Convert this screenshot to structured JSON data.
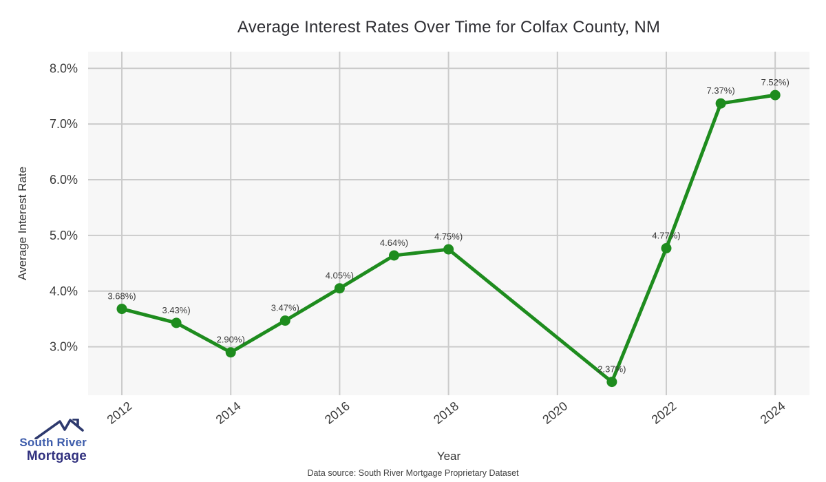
{
  "chart_data": {
    "type": "line",
    "title": "Average Interest Rates Over Time for Colfax County, NM",
    "xlabel": "Year",
    "ylabel": "Average Interest Rate",
    "x": [
      2012,
      2013,
      2014,
      2015,
      2016,
      2017,
      2018,
      2021,
      2022,
      2023,
      2024
    ],
    "values": [
      3.68,
      3.43,
      2.9,
      3.47,
      4.05,
      4.64,
      4.75,
      2.37,
      4.77,
      7.37,
      7.52
    ],
    "point_labels": [
      "3.68%)",
      "3.43%)",
      "2.90%)",
      "3.47%)",
      "4.05%)",
      "4.64%)",
      "4.75%)",
      "2.37%)",
      "4.77%)",
      "7.37%)",
      "7.52%)"
    ],
    "xticks": {
      "values": [
        2012,
        2014,
        2016,
        2018,
        2020,
        2022,
        2024
      ],
      "labels": [
        "2012",
        "2014",
        "2016",
        "2018",
        "2020",
        "2022",
        "2024"
      ]
    },
    "yticks": {
      "values": [
        3,
        4,
        5,
        6,
        7,
        8
      ],
      "labels": [
        "3.0%",
        "4.0%",
        "5.0%",
        "6.0%",
        "7.0%",
        "8.0%"
      ]
    },
    "xlim": [
      2011.38,
      2024.63
    ],
    "ylim": [
      2.13,
      8.3
    ],
    "grid": true,
    "legend": "none",
    "line_color": "#1e8c1e",
    "marker_color": "#1e8c1e",
    "plot_bg": "#f7f7f7",
    "grid_color": "#cbcbcb",
    "tick_color": "#3b3b3b",
    "label_color": "#333333",
    "annotation_color": "#3b3b3b"
  },
  "footer": {
    "text": "Data source: South River Mortgage Proprietary Dataset"
  },
  "logo": {
    "line1": "South River",
    "line2": "Mortgage",
    "color1": "#3d5cab",
    "color2": "#31317f",
    "roof_color": "#2e3a6e"
  }
}
